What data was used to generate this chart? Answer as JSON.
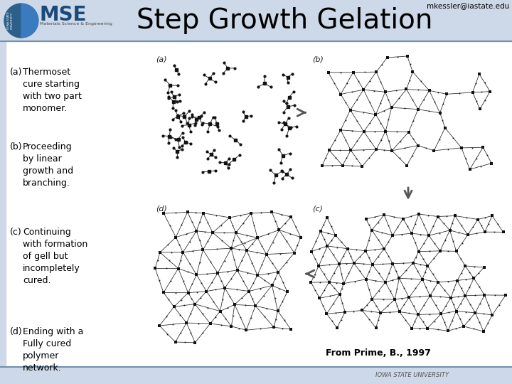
{
  "title": "Step Growth Gelation",
  "email": "mkessler@iastate.edu",
  "bg_color": "#cdd9e8",
  "slide_bg": "#ffffff",
  "title_fontsize": 28,
  "title_color": "#000000",
  "email_fontsize": 7.5,
  "email_color": "#000000",
  "text_items": [
    {
      "label": "(a)",
      "text": "Thermoset\ncure starting\nwith two part\nmonomer."
    },
    {
      "label": "(b)",
      "text": "Proceeding\nby linear\ngrowth and\nbranching."
    },
    {
      "label": "(c)",
      "text": "Continuing\nwith formation\nof gell but\nincompletely\ncured."
    },
    {
      "label": "(d)",
      "text": "Ending with a\nFully cured\npolymer\nnetwork."
    }
  ],
  "caption": "From Prime, B., 1997",
  "caption_fontsize": 9,
  "body_fontsize": 9,
  "label_fontsize": 9,
  "header_line_color": "#7090b0",
  "footer_line_color": "#7090b0",
  "footer_text": "IOWA STATE UNIVERSITY"
}
